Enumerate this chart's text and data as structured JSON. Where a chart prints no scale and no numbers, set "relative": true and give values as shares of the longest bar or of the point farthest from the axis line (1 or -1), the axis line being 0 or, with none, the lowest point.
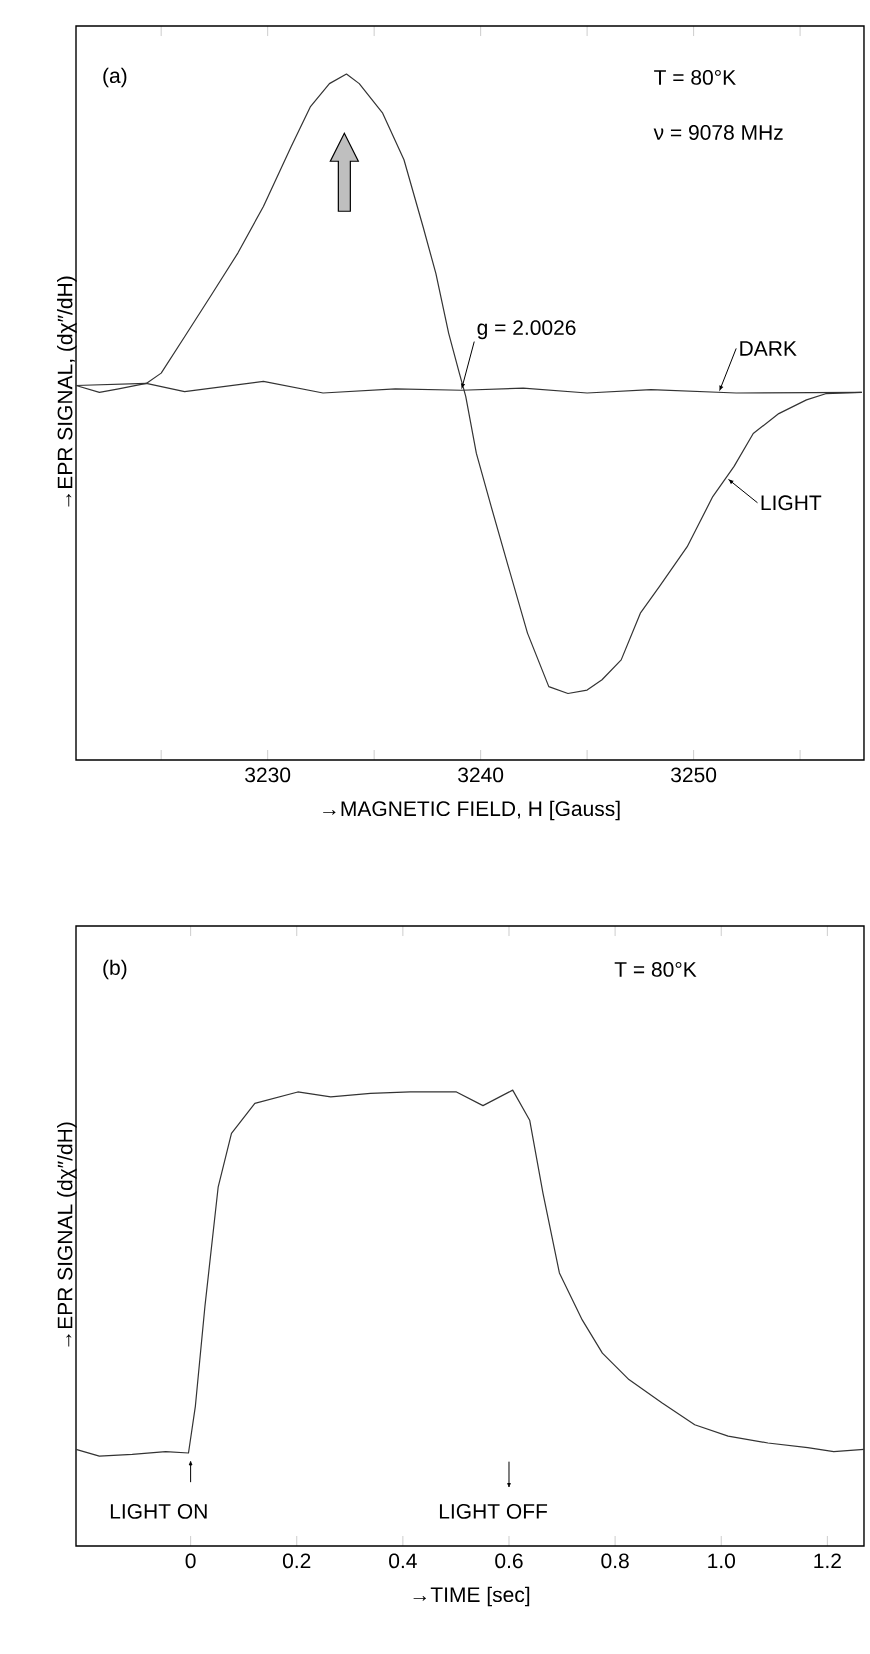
{
  "chart_data": [
    {
      "type": "line",
      "relative": true,
      "xlabel": "→MAGNETIC FIELD, H [Gauss]",
      "ylabel": "→EPR SIGNAL, (dχ″/dH)",
      "xlim": [
        3221,
        3258
      ],
      "xticks": [
        {
          "value": 3225,
          "label": null
        },
        3230,
        {
          "value": 3235,
          "label": null
        },
        3240,
        {
          "value": 3245,
          "label": null
        },
        3250,
        {
          "value": 3255,
          "label": null
        }
      ],
      "tick_labels": "x",
      "annotations": [
        "(a)",
        "T = 80°K",
        "ν = 9078 MHz",
        {
          "text": "g = 2.0026",
          "x": 3239.1,
          "y": 0.54
        }
      ],
      "series": [
        {
          "name": "LIGHT",
          "color": "#333333",
          "x": [
            3221.0,
            3222.1,
            3223.0,
            3224.3,
            3225.0,
            3226.1,
            3227.4,
            3228.6,
            3229.8,
            3231.1,
            3232.0,
            3232.9,
            3233.7,
            3234.3,
            3235.4,
            3236.4,
            3237.3,
            3237.9,
            3238.5,
            3239.0,
            3239.3,
            3239.8,
            3240.5,
            3241.3,
            3242.2,
            3243.2,
            3244.1,
            3245.0,
            3245.7,
            3246.6,
            3247.5,
            3248.4,
            3249.7,
            3250.9,
            3251.9,
            3252.8,
            3254.0,
            3255.3,
            3256.2,
            3257.9
          ],
          "values": [
            0.546,
            0.536,
            0.541,
            0.549,
            0.564,
            0.617,
            0.68,
            0.739,
            0.807,
            0.894,
            0.952,
            0.986,
            1.0,
            0.986,
            0.943,
            0.875,
            0.777,
            0.709,
            0.622,
            0.564,
            0.53,
            0.447,
            0.369,
            0.282,
            0.185,
            0.107,
            0.097,
            0.102,
            0.117,
            0.146,
            0.214,
            0.253,
            0.311,
            0.384,
            0.428,
            0.476,
            0.505,
            0.525,
            0.534,
            0.536
          ]
        },
        {
          "name": "DARK",
          "color": "#333333",
          "x": [
            3221.0,
            3224.3,
            3226.1,
            3229.8,
            3232.6,
            3236.0,
            3239.1,
            3242.0,
            3245.0,
            3248.0,
            3252.0,
            3257.9
          ],
          "values": [
            0.546,
            0.549,
            0.537,
            0.552,
            0.535,
            0.541,
            0.539,
            0.542,
            0.535,
            0.54,
            0.535,
            0.536
          ]
        }
      ]
    },
    {
      "type": "line",
      "relative": true,
      "xlabel": "→TIME [sec]",
      "ylabel": "→EPR SIGNAL (dχ″/dH)",
      "xlim": [
        -0.216,
        1.269
      ],
      "xticks": [
        0,
        0.2,
        0.4,
        0.6,
        0.8,
        {
          "value": 1,
          "label": "1.0"
        },
        1.2
      ],
      "tick_labels": "x",
      "annotations": [
        "(b)",
        "T = 80°K",
        "LIGHT ON",
        "LIGHT OFF"
      ],
      "series": [
        {
          "color": "#333333",
          "x": [
            -0.216,
            -0.172,
            -0.11,
            -0.047,
            -0.004,
            0.009,
            0.027,
            0.052,
            0.077,
            0.121,
            0.202,
            0.264,
            0.339,
            0.414,
            0.501,
            0.551,
            0.607,
            0.639,
            0.664,
            0.695,
            0.738,
            0.776,
            0.826,
            0.888,
            0.95,
            1.013,
            1.088,
            1.163,
            1.212,
            1.269
          ],
          "values": [
            0.212,
            0.197,
            0.201,
            0.207,
            0.204,
            0.307,
            0.526,
            0.788,
            0.905,
            0.971,
            0.996,
            0.985,
            0.993,
            0.996,
            0.996,
            0.966,
            1.0,
            0.934,
            0.774,
            0.599,
            0.496,
            0.423,
            0.365,
            0.314,
            0.266,
            0.241,
            0.226,
            0.216,
            0.207,
            0.212
          ]
        }
      ]
    }
  ]
}
